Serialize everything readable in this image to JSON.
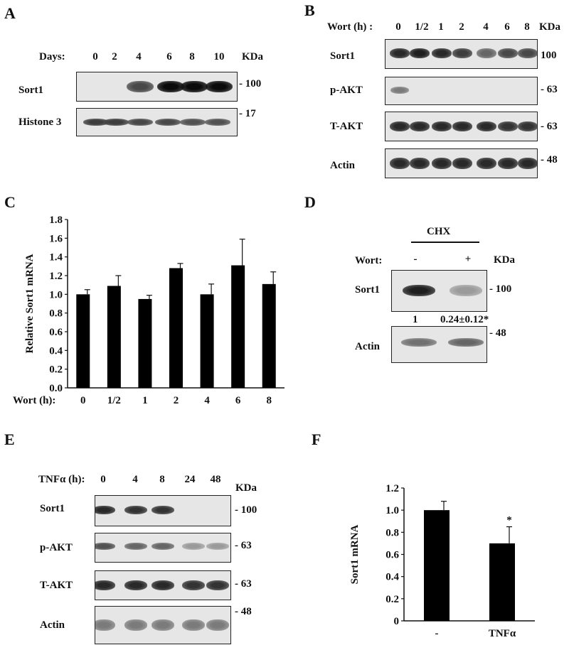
{
  "panels": {
    "A": {
      "label": "A",
      "header_label": "Days:",
      "lanes": [
        "0",
        "2",
        "4",
        "6",
        "8",
        "10"
      ],
      "kda_label": "KDa",
      "rows": [
        {
          "name": "Sort1",
          "kda": "- 100",
          "intensity": [
            0,
            0,
            0.7,
            1.0,
            1.0,
            1.0
          ]
        },
        {
          "name": "Histone 3",
          "kda": "- 17",
          "intensity": [
            0.75,
            0.75,
            0.7,
            0.7,
            0.65,
            0.65
          ]
        }
      ]
    },
    "B": {
      "label": "B",
      "header_label": "Wort (h) :",
      "lanes": [
        "0",
        "1/2",
        "1",
        "2",
        "4",
        "6",
        "8"
      ],
      "kda_label": "KDa",
      "rows": [
        {
          "name": "Sort1",
          "kda": "100",
          "intensity": [
            0.85,
            0.9,
            0.85,
            0.75,
            0.55,
            0.7,
            0.7
          ]
        },
        {
          "name": "p-AKT",
          "kda": "- 63",
          "intensity": [
            0.45,
            0,
            0,
            0,
            0,
            0,
            0
          ]
        },
        {
          "name": "T-AKT",
          "kda": "- 63",
          "intensity": [
            0.85,
            0.85,
            0.85,
            0.85,
            0.85,
            0.8,
            0.8
          ]
        },
        {
          "name": "Actin",
          "kda": "- 48",
          "intensity": [
            0.85,
            0.85,
            0.85,
            0.85,
            0.85,
            0.85,
            0.85
          ]
        }
      ]
    },
    "C": {
      "label": "C"
    },
    "D": {
      "label": "D",
      "treatment": "CHX",
      "header_label": "Wort:",
      "lanes": [
        "-",
        "+"
      ],
      "kda_label": "KDa",
      "rows": [
        {
          "name": "Sort1",
          "kda": "- 100",
          "intensity": [
            0.9,
            0.3
          ]
        },
        {
          "name": "Actin",
          "kda": "- 48",
          "intensity": [
            0.5,
            0.55
          ]
        }
      ],
      "quant": [
        "1",
        "0.24±0.12*"
      ]
    },
    "E": {
      "label": "E",
      "header_label": "TNFα (h):",
      "lanes": [
        "0",
        "4",
        "8",
        "24",
        "48"
      ],
      "kda_label": "KDa",
      "rows": [
        {
          "name": "Sort1",
          "kda": "- 100",
          "intensity": [
            0.85,
            0.8,
            0.8,
            0,
            0
          ]
        },
        {
          "name": "p-AKT",
          "kda": "- 63",
          "intensity": [
            0.65,
            0.55,
            0.55,
            0.3,
            0.3
          ]
        },
        {
          "name": "T-AKT",
          "kda": "- 63",
          "intensity": [
            0.85,
            0.85,
            0.85,
            0.8,
            0.8
          ]
        },
        {
          "name": "Actin",
          "kda": "- 48",
          "intensity": [
            0.45,
            0.45,
            0.45,
            0.45,
            0.45
          ]
        }
      ]
    },
    "F": {
      "label": "F"
    }
  },
  "chart_data": [
    {
      "type": "bar",
      "panel": "C",
      "categories": [
        "0",
        "1/2",
        "1",
        "2",
        "4",
        "6",
        "8"
      ],
      "values": [
        1.0,
        1.09,
        0.95,
        1.28,
        1.0,
        1.31,
        1.11
      ],
      "errors": [
        0.05,
        0.11,
        0.04,
        0.05,
        0.11,
        0.28,
        0.13
      ],
      "ylabel": "Relative Sort1 mRNA",
      "xlabel": "Wort (h):",
      "ylim": [
        0,
        1.8
      ],
      "yticks": [
        "0.0",
        "0.2",
        "0.4",
        "0.6",
        "0.8",
        "1.0",
        "1.2",
        "1.4",
        "1.6",
        "1.8"
      ]
    },
    {
      "type": "bar",
      "panel": "F",
      "categories": [
        "-",
        "TNFα"
      ],
      "values": [
        1.0,
        0.7
      ],
      "errors": [
        0.08,
        0.15
      ],
      "annotations": [
        "",
        "*"
      ],
      "ylabel": "Sort1 mRNA",
      "ylim": [
        0,
        1.2
      ],
      "yticks": [
        "0",
        "0.2",
        "0.4",
        "0.6",
        "0.8",
        "1.0",
        "1.2"
      ]
    }
  ]
}
